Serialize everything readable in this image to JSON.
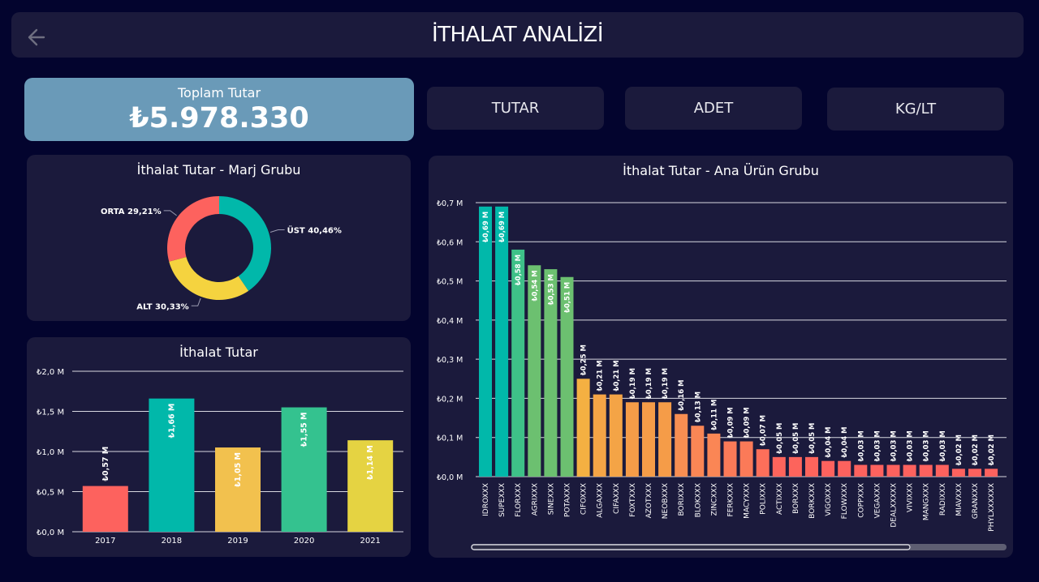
{
  "header": {
    "title": "İTHALAT ANALİZİ"
  },
  "kpi": {
    "label": "Toplam Tutar",
    "value": "₺5.978.330"
  },
  "buttons": {
    "tutar": "TUTAR",
    "adet": "ADET",
    "kglt": "KG/LT"
  },
  "donut": {
    "title": "İthalat Tutar - Marj Grubu",
    "chart_data": {
      "type": "pie",
      "categories": [
        "ÜST",
        "ALT",
        "ORTA"
      ],
      "values": [
        40.46,
        30.33,
        29.21
      ],
      "labels": [
        "ÜST 40,46%",
        "ALT 30,33%",
        "ORTA 29,21%"
      ],
      "colors": [
        "#01b8aa",
        "#f5d33f",
        "#fd625e"
      ]
    }
  },
  "yearly": {
    "title": "İthalat Tutar",
    "chart_data": {
      "type": "bar",
      "categories": [
        "2017",
        "2018",
        "2019",
        "2020",
        "2021"
      ],
      "values": [
        0.57,
        1.66,
        1.05,
        1.55,
        1.14
      ],
      "data_labels": [
        "₺0,57 M",
        "₺1,66 M",
        "₺1,05 M",
        "₺1,55 M",
        "₺1,14 M"
      ],
      "yticks": [
        "₺0,0 M",
        "₺0,5 M",
        "₺1,0 M",
        "₺1,5 M",
        "₺2,0 M"
      ],
      "ylim": [
        0,
        2.0
      ],
      "colors": [
        "#fd625e",
        "#01b8aa",
        "#f2c14e",
        "#34c28f",
        "#e5d342"
      ]
    }
  },
  "products": {
    "title": "İthalat Tutar - Ana Ürün Grubu",
    "chart_data": {
      "type": "bar",
      "categories": [
        "IDROXXX",
        "SUPEXXX",
        "FLORXXX",
        "AGRIXXX",
        "SINEXXX",
        "POTAXXX",
        "CIFOXXX",
        "ALGAXXX",
        "CIFAXXX",
        "FOXTXXX",
        "AZOTXXX",
        "NEOBXXX",
        "BORIXXX",
        "BLOKXXX",
        "ZINCXXX",
        "FERKXXX",
        "MACYXXX",
        "POLIXXX",
        "ACTIXXX",
        "BORXXX",
        "BORKXXX",
        "VIGOXXX",
        "FLOWXXX",
        "COPPXXX",
        "VEGAXXX",
        "DEALXXXXX",
        "VIVIXXX",
        "MANGXXX",
        "RADIXXX",
        "MIAVXXX",
        "GRANXXX",
        "PHYLXXXXXX"
      ],
      "values": [
        0.69,
        0.69,
        0.58,
        0.54,
        0.53,
        0.51,
        0.25,
        0.21,
        0.21,
        0.19,
        0.19,
        0.19,
        0.16,
        0.13,
        0.11,
        0.09,
        0.09,
        0.07,
        0.05,
        0.05,
        0.05,
        0.04,
        0.04,
        0.03,
        0.03,
        0.03,
        0.03,
        0.03,
        0.03,
        0.02,
        0.02,
        0.02
      ],
      "data_labels": [
        "₺0,69 M",
        "₺0,69 M",
        "₺0,58 M",
        "₺0,54 M",
        "₺0,53 M",
        "₺0,51 M",
        "₺0,25 M",
        "₺0,21 M",
        "₺0,21 M",
        "₺0,19 M",
        "₺0,19 M",
        "₺0,19 M",
        "₺0,16 M",
        "₺0,13 M",
        "₺0,11 M",
        "₺0,09 M",
        "₺0,09 M",
        "₺0,07 M",
        "₺0,05 M",
        "₺0,05 M",
        "₺0,05 M",
        "₺0,04 M",
        "₺0,04 M",
        "₺0,03 M",
        "₺0,03 M",
        "₺0,03 M",
        "₺0,03 M",
        "₺0,03 M",
        "₺0,03 M",
        "₺0,02 M",
        "₺0,02 M",
        "₺0,02 M"
      ],
      "yticks": [
        "₺0,0 M",
        "₺0,1 M",
        "₺0,2 M",
        "₺0,3 M",
        "₺0,4 M",
        "₺0,5 M",
        "₺0,6 M",
        "₺0,7 M"
      ],
      "ylim": [
        0,
        0.7
      ],
      "colors": [
        "#01b8aa",
        "#01b8aa",
        "#3ec188",
        "#6cc070",
        "#6cc070",
        "#6cc070",
        "#f4b042",
        "#f4a446",
        "#f4a446",
        "#f59c48",
        "#f59c48",
        "#f59c48",
        "#f88e52",
        "#fa8655",
        "#fa8655",
        "#fb7a58",
        "#fb7a58",
        "#fd6f5a",
        "#fd645c",
        "#fd645c",
        "#fd645c",
        "#fd625e",
        "#fd625e",
        "#fd625e",
        "#fd625e",
        "#fd625e",
        "#fd625e",
        "#fd625e",
        "#fd625e",
        "#fd625e",
        "#fd625e",
        "#fd625e"
      ]
    }
  }
}
